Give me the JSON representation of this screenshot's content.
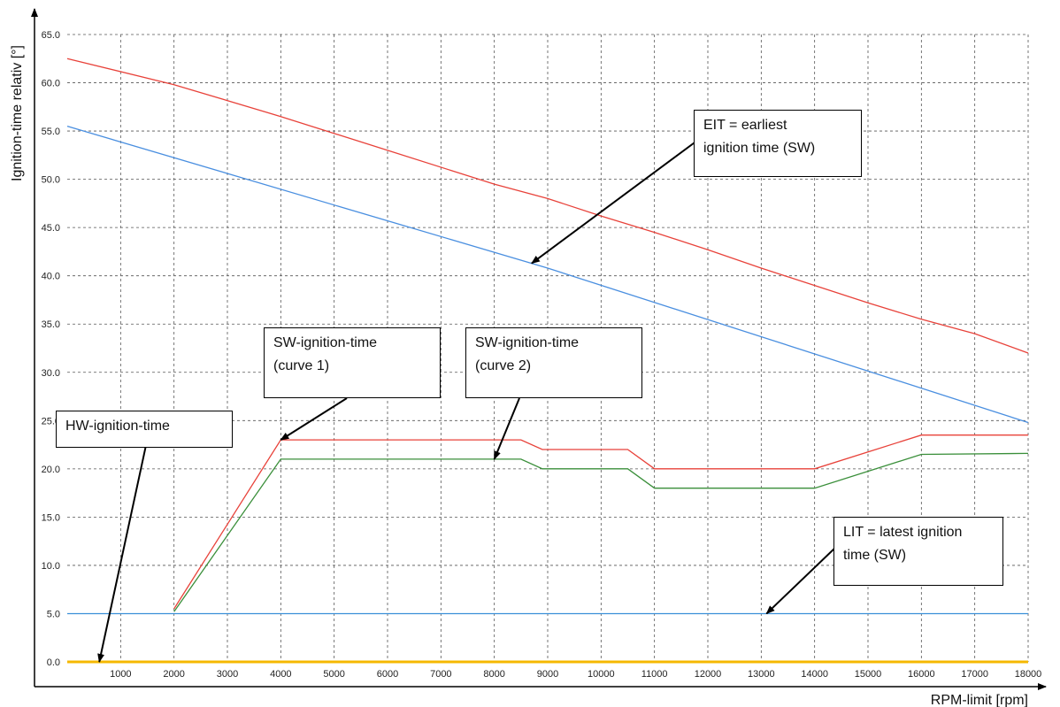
{
  "chart_data": {
    "type": "line",
    "title": "",
    "xlabel": "RPM-limit [rpm]",
    "ylabel": "Ignition-time relativ [°]",
    "xlim": [
      0,
      18000
    ],
    "ylim": [
      0,
      65
    ],
    "grid": true,
    "x_ticks": [
      1000,
      2000,
      3000,
      4000,
      5000,
      6000,
      7000,
      8000,
      9000,
      10000,
      11000,
      12000,
      13000,
      14000,
      15000,
      16000,
      17000,
      18000
    ],
    "y_ticks": [
      "0.0",
      "5.0",
      "10.0",
      "15.0",
      "20.0",
      "25.0",
      "30.0",
      "35.0",
      "40.0",
      "45.0",
      "50.0",
      "55.0",
      "60.0",
      "65.0"
    ],
    "series": [
      {
        "color": "#e8423a",
        "points": [
          [
            0,
            62.5
          ],
          [
            2000,
            59.8
          ],
          [
            4000,
            56.5
          ],
          [
            6000,
            53
          ],
          [
            8000,
            49.5
          ],
          [
            9000,
            48
          ],
          [
            10000,
            46.2
          ],
          [
            11000,
            44.5
          ],
          [
            12000,
            42.7
          ],
          [
            13000,
            40.8
          ],
          [
            14000,
            39
          ],
          [
            15000,
            37.2
          ],
          [
            16000,
            35.5
          ],
          [
            17000,
            34
          ],
          [
            18000,
            32
          ]
        ]
      },
      {
        "color": "#4a8fe0",
        "points": [
          [
            0,
            55.5
          ],
          [
            9000,
            40.8
          ],
          [
            18000,
            24.8
          ]
        ]
      },
      {
        "color": "#e8423a",
        "points": [
          [
            2000,
            5.5
          ],
          [
            4000,
            23
          ],
          [
            8500,
            23
          ],
          [
            8900,
            22
          ],
          [
            10500,
            22
          ],
          [
            11000,
            20
          ],
          [
            14000,
            20
          ],
          [
            16000,
            23.5
          ],
          [
            18000,
            23.5
          ]
        ]
      },
      {
        "color": "#3a8f3a",
        "points": [
          [
            2000,
            5.2
          ],
          [
            4000,
            21
          ],
          [
            8500,
            21
          ],
          [
            8900,
            20
          ],
          [
            10500,
            20
          ],
          [
            11000,
            18
          ],
          [
            14000,
            18
          ],
          [
            16000,
            21.5
          ],
          [
            18000,
            21.6
          ]
        ]
      },
      {
        "color": "#3a8fd8",
        "points": [
          [
            0,
            5
          ],
          [
            18000,
            5
          ]
        ]
      },
      {
        "color": "#f5b800",
        "points": [
          [
            0,
            0
          ],
          [
            18000,
            0
          ]
        ]
      }
    ],
    "annotations": [
      {
        "id": "hw",
        "text": "HW-ignition-time",
        "arrow_to": [
          600,
          0
        ]
      },
      {
        "id": "sw1",
        "text": "SW-ignition-time\n(curve 1)",
        "arrow_to": [
          4000,
          23
        ]
      },
      {
        "id": "sw2",
        "text": "SW-ignition-time\n(curve 2)",
        "arrow_to": [
          8000,
          21
        ]
      },
      {
        "id": "eit",
        "text": "EIT = earliest\nignition time (SW)",
        "arrow_to": [
          8700,
          41.3
        ]
      },
      {
        "id": "lit",
        "text": "LIT = latest ignition\ntime (SW)",
        "arrow_to": [
          13100,
          5
        ]
      }
    ]
  }
}
